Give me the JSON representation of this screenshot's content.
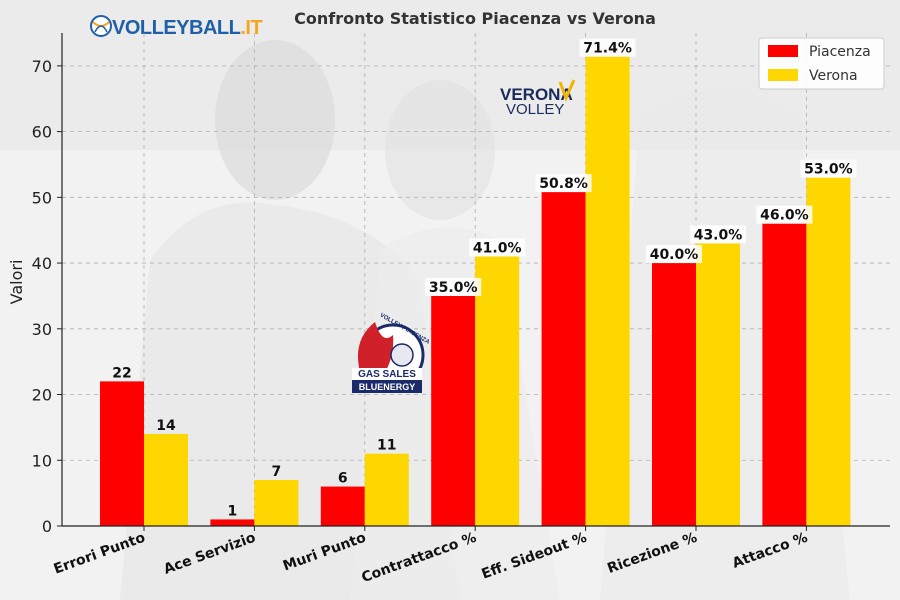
{
  "brand": {
    "site_logo_prefix": "VOLLEYBALL",
    "site_logo_suffix": ".IT",
    "verona_logo_line1": "VERONA",
    "verona_logo_line2": "VOLLEY",
    "piacenza_logo_line1": "VOLLEY PIACENZA",
    "piacenza_logo_line2": "GAS SALES",
    "piacenza_logo_line3": "BLUENERGY"
  },
  "colors": {
    "piacenza": "#ff0000",
    "verona": "#ffd700",
    "site_logo_blue": "#1f5fa8",
    "site_logo_orange": "#f5a623"
  },
  "chart_data": {
    "type": "bar",
    "title": "Confronto Statistico Piacenza vs Verona",
    "xlabel": "",
    "ylabel": "Valori",
    "ylim": [
      0,
      75
    ],
    "yticks": [
      0,
      10,
      20,
      30,
      40,
      50,
      60,
      70
    ],
    "grid": true,
    "legend_position": "top-right",
    "categories": [
      "Errori Punto",
      "Ace Servizio",
      "Muri Punto",
      "Contrattacco %",
      "Eff. Sideout %",
      "Ricezione %",
      "Attacco %"
    ],
    "series": [
      {
        "name": "Piacenza",
        "color": "#ff0000",
        "values": [
          22,
          1,
          6,
          35.0,
          50.8,
          40.0,
          46.0
        ],
        "labels": [
          "22",
          "1",
          "6",
          "35.0%",
          "50.8%",
          "40.0%",
          "46.0%"
        ]
      },
      {
        "name": "Verona",
        "color": "#ffd700",
        "values": [
          14,
          7,
          11,
          41.0,
          71.4,
          43.0,
          53.0
        ],
        "labels": [
          "14",
          "7",
          "11",
          "41.0%",
          "71.4%",
          "43.0%",
          "53.0%"
        ]
      }
    ]
  }
}
